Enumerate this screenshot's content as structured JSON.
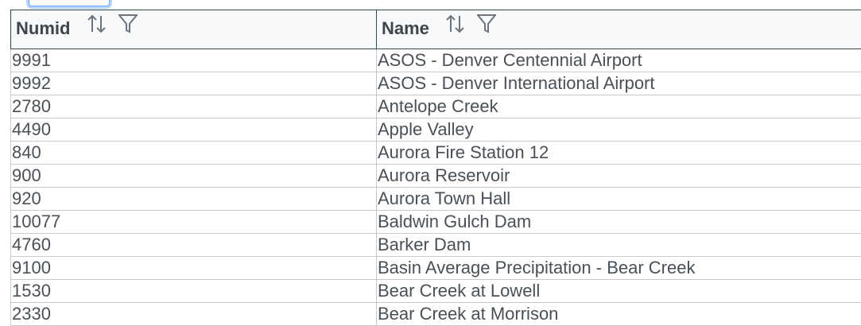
{
  "table": {
    "columns": [
      {
        "label": "Numid"
      },
      {
        "label": "Name"
      }
    ],
    "rows": [
      {
        "numid": "9991",
        "name": "ASOS - Denver Centennial Airport"
      },
      {
        "numid": "9992",
        "name": "ASOS - Denver International Airport"
      },
      {
        "numid": "2780",
        "name": "Antelope Creek"
      },
      {
        "numid": "4490",
        "name": "Apple Valley"
      },
      {
        "numid": "840",
        "name": "Aurora Fire Station 12"
      },
      {
        "numid": "900",
        "name": "Aurora Reservoir"
      },
      {
        "numid": "920",
        "name": "Aurora Town Hall"
      },
      {
        "numid": "10077",
        "name": "Baldwin Gulch Dam"
      },
      {
        "numid": "4760",
        "name": "Barker Dam"
      },
      {
        "numid": "9100",
        "name": "Basin Average Precipitation - Bear Creek"
      },
      {
        "numid": "1530",
        "name": "Bear Creek at Lowell"
      },
      {
        "numid": "2330",
        "name": "Bear Creek at Morrison"
      }
    ]
  },
  "icons": {
    "sort": "sort-arrows-icon",
    "filter": "filter-icon"
  }
}
